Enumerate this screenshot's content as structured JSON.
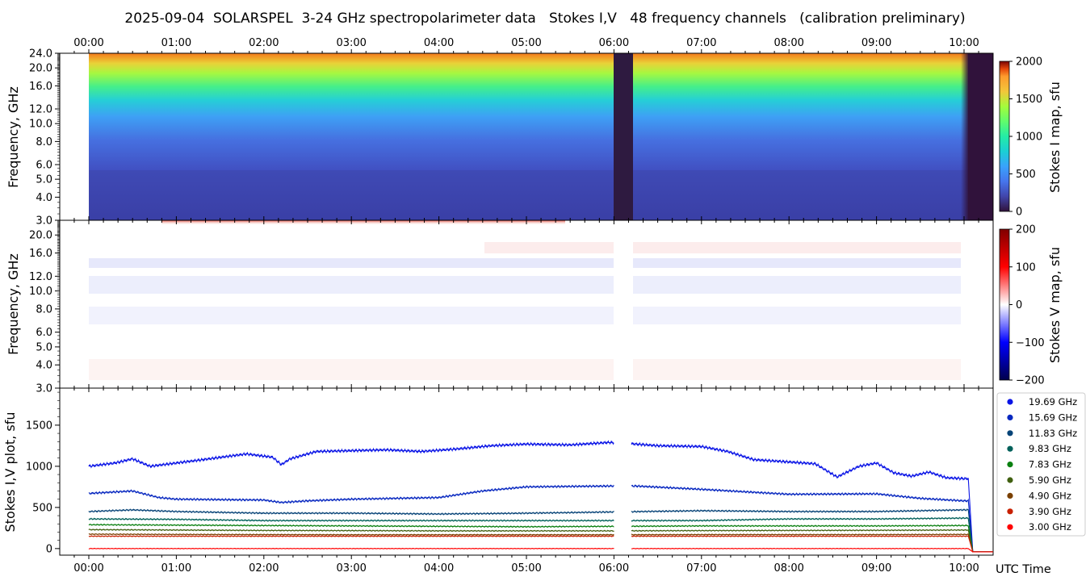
{
  "title": "2025-09-04  SOLARSPEL  3-24 GHz spectropolarimeter data   Stokes I,V   48 frequency channels   (calibration preliminary)",
  "x_axis": {
    "ticks": [
      "00:00",
      "01:00",
      "02:00",
      "03:00",
      "04:00",
      "05:00",
      "06:00",
      "07:00",
      "08:00",
      "09:00",
      "10:00"
    ],
    "label": "UTC Time",
    "range_hours": [
      -0.33,
      10.33
    ]
  },
  "chart_data": [
    {
      "type": "heatmap",
      "panel": "stokes_i_map",
      "ylabel": "Frequency, GHz",
      "yscale": "log",
      "ylim": [
        3.0,
        24.0
      ],
      "yticks": [
        "24.0",
        "20.0",
        "16.0",
        "12.0",
        "10.0",
        "8.0",
        "6.0",
        "5.0",
        "4.0",
        "3.0"
      ],
      "colorbar_label": "Stokes I map, sfu",
      "colorbar_ticks": [
        "2000",
        "1500",
        "1000",
        "500",
        "0"
      ],
      "colorbar_range": [
        0,
        2000
      ],
      "colormap": "turbo",
      "data_start_hour": 0.0,
      "gap_hours": [
        6.0,
        6.2
      ],
      "end_drop_hour": 10.05
    },
    {
      "type": "heatmap",
      "panel": "stokes_v_map",
      "ylabel": "Frequency, GHz",
      "yscale": "log",
      "ylim": [
        3.0,
        24.0
      ],
      "yticks": [
        "20.0",
        "16.0",
        "12.0",
        "10.0",
        "8.0",
        "6.0",
        "5.0",
        "4.0",
        "3.0"
      ],
      "colorbar_label": "Stokes V map, sfu",
      "colorbar_ticks": [
        "200",
        "100",
        "0",
        "−100",
        "−200"
      ],
      "colorbar_range": [
        -200,
        200
      ],
      "colormap": "seismic"
    },
    {
      "type": "line",
      "panel": "stokes_iv_plot",
      "ylabel": "Stokes I,V plot, sfu",
      "yticks": [
        "1500",
        "1000",
        "500",
        "0"
      ],
      "ylim": [
        -80,
        1950
      ],
      "gap_hours": [
        6.0,
        6.2
      ],
      "end_hour": 10.05,
      "series": [
        {
          "name": "19.69 GHz",
          "color": "#0a14e6",
          "x": [
            0,
            0.3,
            0.5,
            0.7,
            1.0,
            1.3,
            1.8,
            2.1,
            2.2,
            2.3,
            2.6,
            3.0,
            3.4,
            3.8,
            4.2,
            4.6,
            5.0,
            5.5,
            5.95,
            6.25,
            6.5,
            7.0,
            7.3,
            7.6,
            7.9,
            8.3,
            8.55,
            8.8,
            9.0,
            9.2,
            9.4,
            9.6,
            9.8,
            10.0
          ],
          "y": [
            1000,
            1040,
            1090,
            1000,
            1040,
            1080,
            1150,
            1110,
            1020,
            1090,
            1180,
            1190,
            1200,
            1180,
            1210,
            1250,
            1270,
            1260,
            1290,
            1270,
            1250,
            1240,
            1180,
            1080,
            1060,
            1030,
            870,
            1000,
            1040,
            920,
            880,
            930,
            860,
            850
          ]
        },
        {
          "name": "15.69 GHz",
          "color": "#0828c0",
          "x": [
            0,
            0.5,
            0.8,
            1.0,
            2.0,
            2.2,
            2.5,
            3.0,
            4.0,
            4.5,
            5.0,
            5.95,
            6.25,
            7.0,
            8.0,
            9.0,
            9.5,
            10.0
          ],
          "y": [
            670,
            700,
            620,
            600,
            590,
            560,
            580,
            600,
            620,
            700,
            750,
            760,
            760,
            720,
            660,
            665,
            610,
            580
          ]
        },
        {
          "name": "11.83 GHz",
          "color": "#084478",
          "x": [
            0,
            0.5,
            1.0,
            2.0,
            3.0,
            4.0,
            5.0,
            6.0,
            7.0,
            8.0,
            9.0,
            10.0
          ],
          "y": [
            450,
            470,
            450,
            430,
            430,
            420,
            430,
            445,
            460,
            450,
            450,
            470
          ]
        },
        {
          "name": "9.83 GHz",
          "color": "#00605a",
          "x": [
            0,
            1,
            2,
            3,
            4,
            5,
            6,
            7,
            8,
            9,
            10
          ],
          "y": [
            360,
            355,
            340,
            340,
            340,
            340,
            340,
            340,
            360,
            360,
            370
          ]
        },
        {
          "name": "7.83 GHz",
          "color": "#0a8010",
          "x": [
            0,
            1,
            2,
            3,
            4,
            5,
            6,
            7,
            8,
            9,
            10
          ],
          "y": [
            290,
            285,
            280,
            275,
            270,
            265,
            270,
            275,
            275,
            275,
            280
          ]
        },
        {
          "name": "5.90 GHz",
          "color": "#406010",
          "x": [
            0,
            1,
            2,
            3,
            4,
            5,
            6,
            7,
            8,
            9,
            10
          ],
          "y": [
            230,
            225,
            220,
            218,
            215,
            215,
            215,
            218,
            220,
            222,
            225
          ]
        },
        {
          "name": "4.90 GHz",
          "color": "#7a4000",
          "x": [
            0,
            1,
            2,
            3,
            4,
            5,
            6,
            7,
            8,
            9,
            10
          ],
          "y": [
            175,
            172,
            170,
            168,
            168,
            168,
            168,
            170,
            170,
            170,
            172
          ]
        },
        {
          "name": "3.90 GHz",
          "color": "#c82000",
          "x": [
            0,
            1,
            2,
            3,
            4,
            5,
            6,
            7,
            8,
            9,
            10
          ],
          "y": [
            150,
            150,
            150,
            150,
            150,
            150,
            150,
            150,
            150,
            150,
            150
          ]
        },
        {
          "name": "3.00 GHz",
          "color": "#ff0000",
          "x": [
            0,
            1,
            2,
            3,
            4,
            5,
            6,
            7,
            8,
            9,
            10
          ],
          "y": [
            0,
            0,
            0,
            0,
            0,
            0,
            0,
            0,
            0,
            0,
            0
          ]
        }
      ]
    }
  ]
}
